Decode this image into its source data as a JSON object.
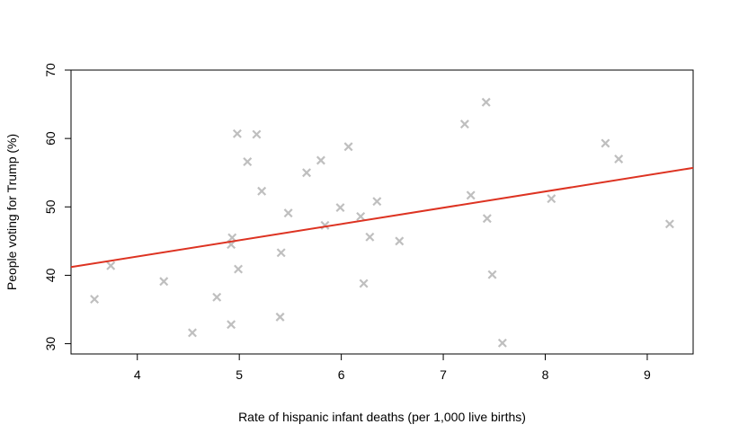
{
  "chart_data": {
    "type": "scatter",
    "xlabel": "Rate of hispanic infant deaths (per 1,000 live births)",
    "ylabel": "People voting for Trump (%)",
    "xlim": [
      3.35,
      9.45
    ],
    "ylim": [
      28.5,
      70.0
    ],
    "xticks": [
      "4",
      "5",
      "6",
      "7",
      "8",
      "9"
    ],
    "yticks": [
      "30",
      "40",
      "50",
      "60",
      "70"
    ],
    "marker": "x",
    "point_color": "#bfbfbf",
    "line_color": "#dd3322",
    "points": [
      {
        "x": 3.58,
        "y": 36.5
      },
      {
        "x": 3.74,
        "y": 41.4
      },
      {
        "x": 4.26,
        "y": 39.1
      },
      {
        "x": 4.54,
        "y": 31.6
      },
      {
        "x": 4.78,
        "y": 36.8
      },
      {
        "x": 4.92,
        "y": 32.8
      },
      {
        "x": 4.92,
        "y": 44.5
      },
      {
        "x": 4.93,
        "y": 45.5
      },
      {
        "x": 4.98,
        "y": 60.7
      },
      {
        "x": 4.99,
        "y": 40.9
      },
      {
        "x": 5.08,
        "y": 56.6
      },
      {
        "x": 5.17,
        "y": 60.6
      },
      {
        "x": 5.22,
        "y": 52.3
      },
      {
        "x": 5.4,
        "y": 33.9
      },
      {
        "x": 5.41,
        "y": 43.3
      },
      {
        "x": 5.48,
        "y": 49.1
      },
      {
        "x": 5.66,
        "y": 55.0
      },
      {
        "x": 5.8,
        "y": 56.8
      },
      {
        "x": 5.84,
        "y": 47.3
      },
      {
        "x": 5.99,
        "y": 49.9
      },
      {
        "x": 6.07,
        "y": 58.8
      },
      {
        "x": 6.19,
        "y": 48.6
      },
      {
        "x": 6.22,
        "y": 38.8
      },
      {
        "x": 6.28,
        "y": 45.6
      },
      {
        "x": 6.35,
        "y": 50.8
      },
      {
        "x": 6.57,
        "y": 45.0
      },
      {
        "x": 7.21,
        "y": 62.1
      },
      {
        "x": 7.27,
        "y": 51.7
      },
      {
        "x": 7.42,
        "y": 65.3
      },
      {
        "x": 7.43,
        "y": 48.3
      },
      {
        "x": 7.48,
        "y": 40.1
      },
      {
        "x": 7.58,
        "y": 30.1
      },
      {
        "x": 8.06,
        "y": 51.2
      },
      {
        "x": 8.59,
        "y": 59.3
      },
      {
        "x": 8.72,
        "y": 57.0
      },
      {
        "x": 9.22,
        "y": 47.5
      }
    ],
    "trendline": {
      "x": [
        3.35,
        9.45
      ],
      "y": [
        41.2,
        55.7
      ]
    }
  }
}
